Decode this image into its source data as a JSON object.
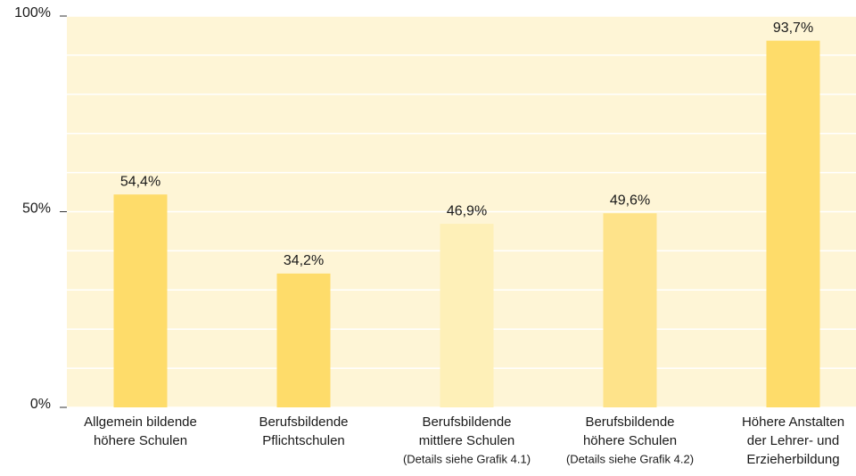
{
  "chart_data": {
    "type": "bar",
    "categories": [
      [
        "Allgemein bildende",
        "höhere Schulen"
      ],
      [
        "Berufsbildende",
        "Pflichtschulen"
      ],
      [
        "Berufsbildende",
        "mittlere Schulen"
      ],
      [
        "Berufsbildende",
        "höhere Schulen"
      ],
      [
        "Höhere Anstalten",
        "der Lehrer- und",
        "Erzieherbildung"
      ]
    ],
    "category_notes": [
      null,
      null,
      "(Details siehe Grafik 4.1)",
      "(Details siehe Grafik 4.2)",
      null
    ],
    "values": [
      54.4,
      34.2,
      46.9,
      49.6,
      93.7
    ],
    "value_labels": [
      "54,4%",
      "34,2%",
      "46,9%",
      "49,6%",
      "93,7%"
    ],
    "colors": [
      "#fedc6a",
      "#fedc6a",
      "#fef0b8",
      "#fee38a",
      "#fedc6a"
    ],
    "ylim": [
      0,
      100
    ],
    "yticks": [
      {
        "value": 0,
        "label": "0%"
      },
      {
        "value": 50,
        "label": "50%"
      },
      {
        "value": 100,
        "label": "100%"
      }
    ],
    "minor_yticks": [
      10,
      20,
      30,
      40,
      60,
      70,
      80,
      90
    ],
    "grid": true
  }
}
